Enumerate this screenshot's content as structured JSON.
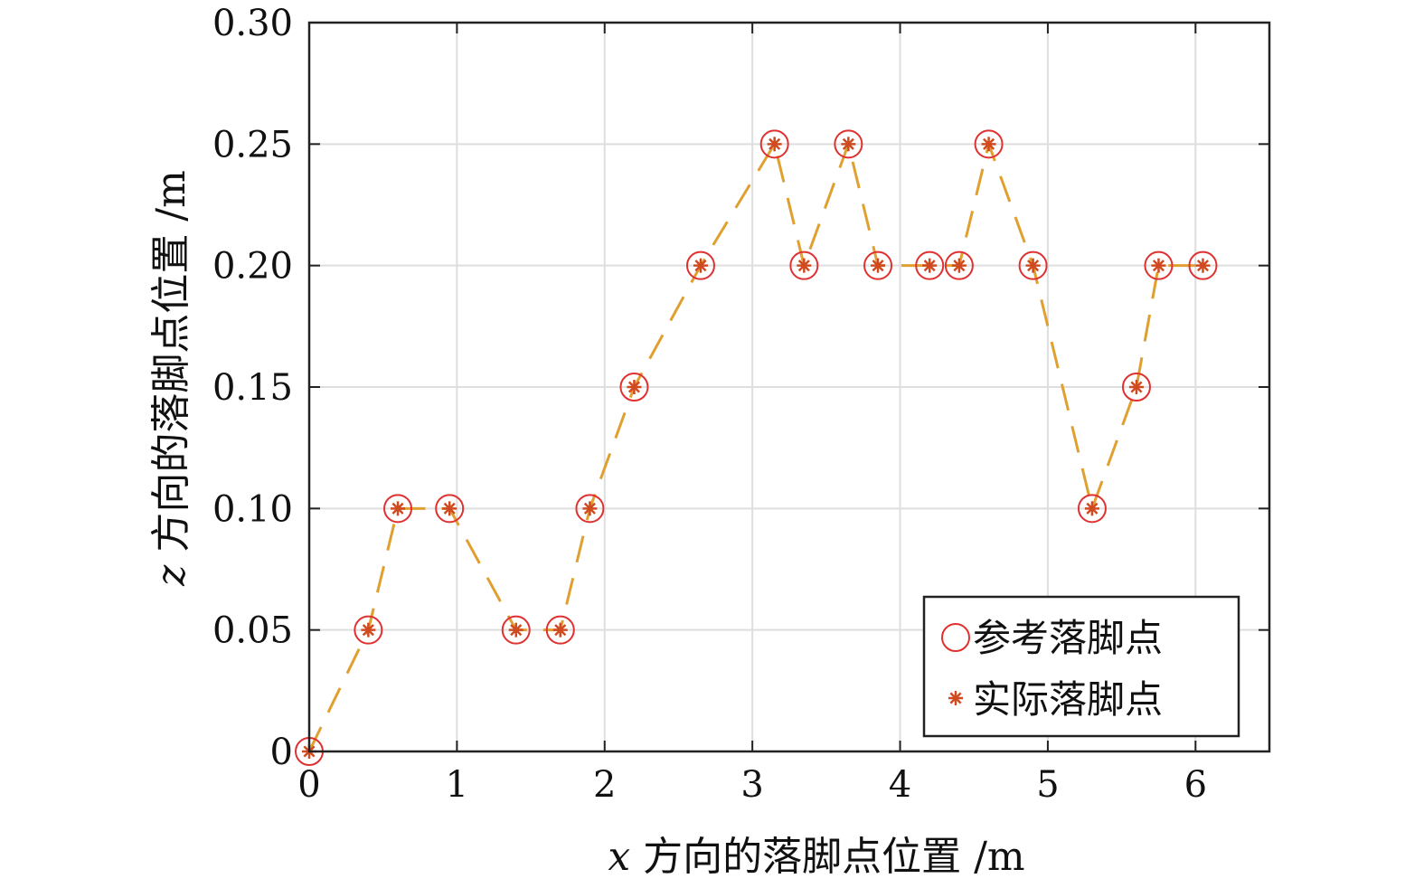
{
  "chart_data": {
    "type": "line",
    "xlabel_var": "x",
    "xlabel_text": " 方向的落脚点位置 /m",
    "ylabel_var": "z",
    "ylabel_text": " 方向的落脚点位置 /m",
    "xlim": [
      0,
      6.5
    ],
    "ylim": [
      0,
      0.3
    ],
    "xticks": [
      0,
      1,
      2,
      3,
      4,
      5,
      6
    ],
    "xtick_labels": [
      "0",
      "1",
      "2",
      "3",
      "4",
      "5",
      "6"
    ],
    "yticks": [
      0,
      0.05,
      0.1,
      0.15,
      0.2,
      0.25,
      0.3
    ],
    "ytick_labels": [
      "0",
      "0.05",
      "0.10",
      "0.15",
      "0.20",
      "0.25",
      "0.30"
    ],
    "grid": true,
    "legend_position": "bottom-right",
    "series": [
      {
        "name": "参考落脚点",
        "marker": "circle",
        "color": "#e03030",
        "x": [
          0,
          0.4,
          0.6,
          0.95,
          1.4,
          1.7,
          1.9,
          2.2,
          2.65,
          3.15,
          3.35,
          3.65,
          3.85,
          4.2,
          4.4,
          4.6,
          4.9,
          5.3,
          5.6,
          5.75,
          6.05
        ],
        "y": [
          0,
          0.05,
          0.1,
          0.1,
          0.05,
          0.05,
          0.1,
          0.15,
          0.2,
          0.25,
          0.2,
          0.25,
          0.2,
          0.2,
          0.2,
          0.25,
          0.2,
          0.1,
          0.15,
          0.2,
          0.2
        ]
      },
      {
        "name": "实际落脚点",
        "marker": "asterisk",
        "color": "#d04a20",
        "line_color": "#e0a030",
        "x": [
          0,
          0.4,
          0.6,
          0.95,
          1.4,
          1.7,
          1.9,
          2.2,
          2.65,
          3.15,
          3.35,
          3.65,
          3.85,
          4.2,
          4.4,
          4.6,
          4.9,
          5.3,
          5.6,
          5.75,
          6.05
        ],
        "y": [
          0,
          0.05,
          0.1,
          0.1,
          0.05,
          0.05,
          0.1,
          0.15,
          0.2,
          0.25,
          0.2,
          0.25,
          0.2,
          0.2,
          0.2,
          0.25,
          0.2,
          0.1,
          0.15,
          0.2,
          0.2
        ]
      }
    ]
  }
}
